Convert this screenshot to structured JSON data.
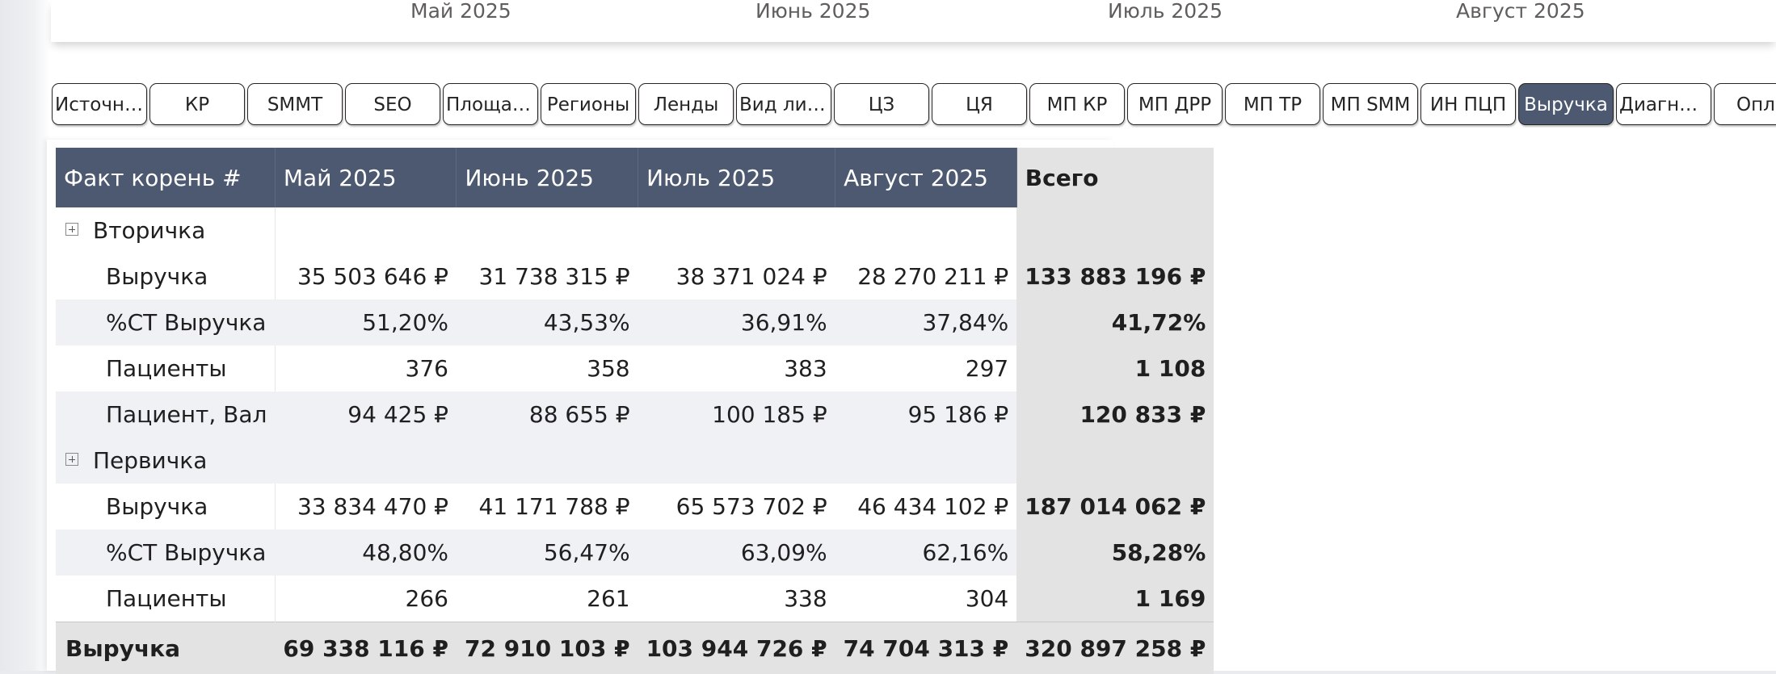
{
  "months_header": [
    "Май 2025",
    "Июнь 2025",
    "Июль 2025",
    "Август 2025"
  ],
  "tabs": [
    {
      "label": "Источники"
    },
    {
      "label": "КР"
    },
    {
      "label": "SMMT"
    },
    {
      "label": "SEO"
    },
    {
      "label": "Площадки"
    },
    {
      "label": "Регионы"
    },
    {
      "label": "Ленды"
    },
    {
      "label": "Вид лида"
    },
    {
      "label": "ЦЗ"
    },
    {
      "label": "ЦЯ"
    },
    {
      "label": "МП КР"
    },
    {
      "label": "МП ДРР"
    },
    {
      "label": "МП ТР"
    },
    {
      "label": "МП SMM"
    },
    {
      "label": "ИН ПЦП"
    },
    {
      "label": "Выручка",
      "active": true
    },
    {
      "label": "Диагност..."
    },
    {
      "label": "Опла"
    }
  ],
  "table": {
    "headers": [
      "Факт корень #",
      "Май 2025",
      "Июнь 2025",
      "Июль 2025",
      "Август 2025",
      "Всего"
    ],
    "groups": [
      {
        "name": "Вторичка",
        "rows": [
          {
            "label": "Выручка",
            "values": [
              "35 503 646 ₽",
              "31 738 315 ₽",
              "38 371 024 ₽",
              "28 270 211 ₽"
            ],
            "total": "133 883 196 ₽"
          },
          {
            "label": "%СТ Выручка",
            "values": [
              "51,20%",
              "43,53%",
              "36,91%",
              "37,84%"
            ],
            "total": "41,72%"
          },
          {
            "label": "Пациенты",
            "values": [
              "376",
              "358",
              "383",
              "297"
            ],
            "total": "1 108"
          },
          {
            "label": "Пациент, Вал",
            "values": [
              "94 425 ₽",
              "88 655 ₽",
              "100 185 ₽",
              "95 186 ₽"
            ],
            "total": "120 833 ₽"
          }
        ]
      },
      {
        "name": "Первичка",
        "rows": [
          {
            "label": "Выручка",
            "values": [
              "33 834 470 ₽",
              "41 171 788 ₽",
              "65 573 702 ₽",
              "46 434 102 ₽"
            ],
            "total": "187 014 062 ₽"
          },
          {
            "label": "%СТ Выручка",
            "values": [
              "48,80%",
              "56,47%",
              "63,09%",
              "62,16%"
            ],
            "total": "58,28%"
          },
          {
            "label": "Пациенты",
            "values": [
              "266",
              "261",
              "338",
              "304"
            ],
            "total": "1 169"
          }
        ]
      }
    ],
    "grand_total": {
      "label": "Выручка",
      "values": [
        "69 338 116 ₽",
        "72 910 103 ₽",
        "103 944 726 ₽",
        "74 704 313 ₽"
      ],
      "total": "320 897 258 ₽"
    }
  }
}
